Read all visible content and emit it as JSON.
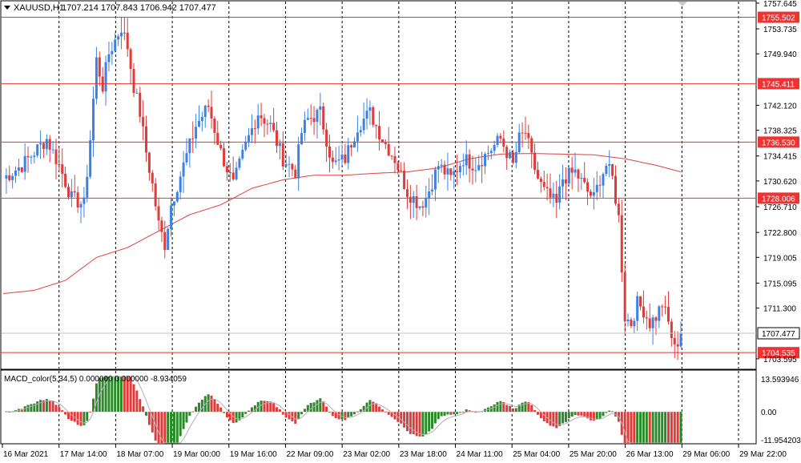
{
  "header": {
    "symbol_label": "XAUUSD,H1",
    "ohlc_values": "1707.214 1707.843 1706.942 1707.477",
    "menu_icon": "triangle-down-icon",
    "corner_icon": "triangle-down-icon"
  },
  "macd": {
    "label": "MACD_color(5,34,5) 0.000000 0.000000 -8.934059",
    "upper_value": "13.593946",
    "zero_value": "0.00",
    "lower_value": "-11.954203"
  },
  "colors": {
    "bull": "#3c82e6",
    "bear": "#e03a3a",
    "ma": "#e04040",
    "level": "#ee3333",
    "macd_up": "#2a8a2a",
    "macd_down": "#e03a3a",
    "signal": "#b0b0b0"
  },
  "chart_data": {
    "type": "candlestick",
    "timeframe": "H1",
    "ylim": [
      1702.0,
      1758.0
    ],
    "y_ticks": [
      "1757.645",
      "1753.735",
      "1749.940",
      "1742.120",
      "1738.325",
      "1734.415",
      "1730.620",
      "1726.710",
      "1722.800",
      "1719.005",
      "1715.095",
      "1711.300",
      "1703.595"
    ],
    "x_ticks": [
      "16 Mar 2021",
      "17 Mar 14:00",
      "18 Mar 07:00",
      "19 Mar 00:00",
      "19 Mar 16:00",
      "22 Mar 09:00",
      "23 Mar 02:00",
      "23 Mar 18:00",
      "24 Mar 11:00",
      "25 Mar 04:00",
      "25 Mar 20:00",
      "26 Mar 13:00",
      "29 Mar 06:00",
      "29 Mar 22:00"
    ],
    "levels": [
      {
        "value": 1755.502,
        "label": "1755.502"
      },
      {
        "value": 1745.411,
        "label": "1745.411"
      },
      {
        "value": 1736.53,
        "label": "1736.530"
      },
      {
        "value": 1728.006,
        "label": "1728.006"
      },
      {
        "value": 1704.535,
        "label": "1704.535"
      }
    ],
    "current_price": {
      "value": 1707.477,
      "label": "1707.477"
    },
    "close_path": [
      [
        0,
        1731
      ],
      [
        6,
        1733
      ],
      [
        10,
        1735
      ],
      [
        14,
        1737
      ],
      [
        18,
        1733
      ],
      [
        22,
        1728
      ],
      [
        26,
        1727
      ],
      [
        28,
        1737
      ],
      [
        30,
        1749
      ],
      [
        32,
        1745
      ],
      [
        34,
        1750
      ],
      [
        36,
        1752
      ],
      [
        38,
        1754
      ],
      [
        40,
        1751
      ],
      [
        42,
        1745
      ],
      [
        44,
        1741
      ],
      [
        46,
        1735
      ],
      [
        48,
        1730
      ],
      [
        50,
        1724
      ],
      [
        52,
        1721
      ],
      [
        54,
        1727
      ],
      [
        58,
        1733
      ],
      [
        62,
        1739
      ],
      [
        66,
        1742
      ],
      [
        70,
        1735
      ],
      [
        74,
        1730
      ],
      [
        78,
        1736
      ],
      [
        82,
        1741
      ],
      [
        86,
        1739
      ],
      [
        90,
        1734
      ],
      [
        94,
        1732
      ],
      [
        96,
        1738
      ],
      [
        98,
        1740
      ],
      [
        102,
        1741
      ],
      [
        106,
        1733
      ],
      [
        110,
        1734
      ],
      [
        114,
        1739
      ],
      [
        118,
        1741
      ],
      [
        122,
        1737
      ],
      [
        126,
        1734
      ],
      [
        130,
        1729
      ],
      [
        134,
        1727
      ],
      [
        136,
        1728
      ],
      [
        140,
        1733
      ],
      [
        144,
        1731
      ],
      [
        148,
        1734
      ],
      [
        152,
        1733
      ],
      [
        156,
        1735
      ],
      [
        160,
        1737
      ],
      [
        162,
        1735
      ],
      [
        164,
        1733
      ],
      [
        166,
        1737
      ],
      [
        168,
        1738
      ],
      [
        170,
        1734
      ],
      [
        172,
        1731
      ],
      [
        174,
        1729
      ],
      [
        176,
        1728
      ],
      [
        178,
        1727
      ],
      [
        180,
        1731
      ],
      [
        184,
        1732
      ],
      [
        188,
        1729
      ],
      [
        190,
        1728
      ],
      [
        192,
        1731
      ],
      [
        194,
        1733
      ],
      [
        196,
        1731
      ],
      [
        198,
        1725
      ],
      [
        200,
        1710
      ],
      [
        202,
        1709
      ],
      [
        204,
        1712
      ],
      [
        206,
        1711
      ],
      [
        208,
        1709
      ],
      [
        210,
        1710
      ],
      [
        212,
        1712
      ],
      [
        214,
        1709
      ],
      [
        216,
        1705
      ],
      [
        218,
        1707.477
      ]
    ],
    "ma_path": [
      [
        0,
        1713.5
      ],
      [
        10,
        1714
      ],
      [
        20,
        1715.5
      ],
      [
        30,
        1719
      ],
      [
        40,
        1720.5
      ],
      [
        50,
        1723
      ],
      [
        60,
        1725.5
      ],
      [
        70,
        1727
      ],
      [
        80,
        1729.5
      ],
      [
        90,
        1730.8
      ],
      [
        100,
        1731.5
      ],
      [
        110,
        1731.5
      ],
      [
        120,
        1731.8
      ],
      [
        130,
        1732
      ],
      [
        140,
        1732.6
      ],
      [
        150,
        1734
      ],
      [
        160,
        1734.7
      ],
      [
        170,
        1734.8
      ],
      [
        180,
        1734.7
      ],
      [
        190,
        1734.6
      ],
      [
        200,
        1734
      ],
      [
        210,
        1733
      ],
      [
        218,
        1732
      ]
    ],
    "macd_range": [
      -11.954203,
      13.593946
    ]
  }
}
